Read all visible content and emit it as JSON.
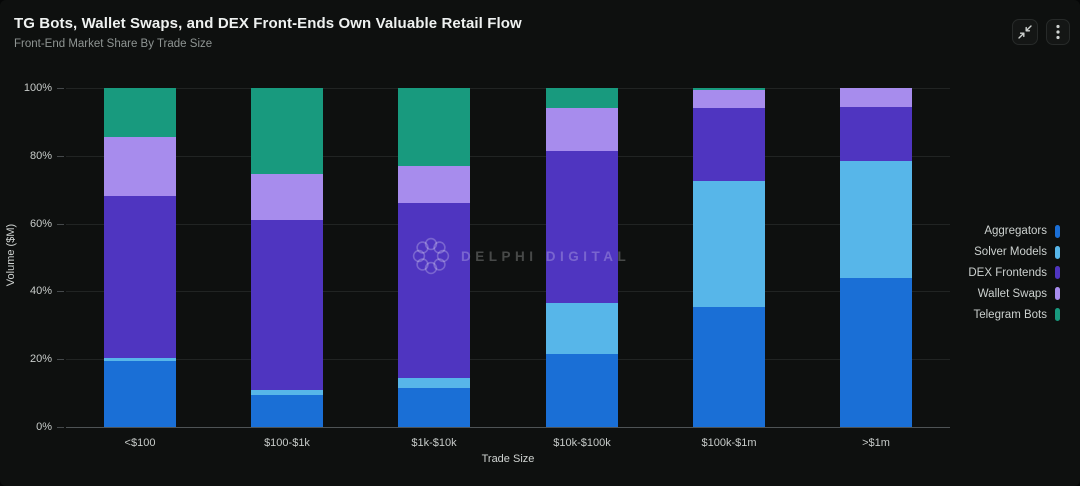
{
  "header": {
    "title": "TG Bots, Wallet Swaps, and DEX Front-Ends Own Valuable Retail Flow",
    "subtitle": "Front-End Market Share By Trade Size"
  },
  "toolbar": {
    "collapse_icon": "collapse-arrows",
    "menu_icon": "vertical-ellipsis"
  },
  "watermark": {
    "text": "DELPHI DIGITAL"
  },
  "colors": {
    "background": "#0e100f",
    "grid": "#212423",
    "axis_line": "#4e5355",
    "tick_text": "#c7cbc9",
    "title_text": "#eff2f1",
    "subtitle_text": "#8f9593",
    "aggregators": "#1a6fd6",
    "solver_models": "#57b6e9",
    "dex_frontends": "#4f35c0",
    "wallet_swaps": "#a78ced",
    "telegram_bots": "#189a7e"
  },
  "chart_data": {
    "type": "bar",
    "stacked": true,
    "normalized_percent": true,
    "title": "TG Bots, Wallet Swaps, and DEX Front-Ends Own Valuable Retail Flow",
    "subtitle": "Front-End Market Share By Trade Size",
    "xlabel": "Trade Size",
    "ylabel": "Volume ($M)",
    "categories": [
      "<$100",
      "$100-$1k",
      "$1k-$10k",
      "$10k-$100k",
      "$100k-$1m",
      ">$1m"
    ],
    "series": [
      {
        "name": "Aggregators",
        "color": "#1a6fd6",
        "values": [
          19.5,
          9.5,
          11.5,
          21.5,
          35.5,
          44
        ]
      },
      {
        "name": "Solver Models",
        "color": "#57b6e9",
        "values": [
          1,
          1.5,
          3,
          15,
          37,
          34.5
        ]
      },
      {
        "name": "DEX Frontends",
        "color": "#4f35c0",
        "values": [
          47.5,
          50,
          51.5,
          45,
          21.5,
          16
        ]
      },
      {
        "name": "Wallet Swaps",
        "color": "#a78ced",
        "values": [
          17.5,
          13.5,
          11,
          12.5,
          5.5,
          5.5
        ]
      },
      {
        "name": "Telegram Bots",
        "color": "#189a7e",
        "values": [
          14.5,
          25.5,
          23,
          6,
          0.5,
          0
        ]
      }
    ],
    "y_ticks": [
      {
        "value": 0,
        "label": "0%"
      },
      {
        "value": 20,
        "label": "20%"
      },
      {
        "value": 40,
        "label": "40%"
      },
      {
        "value": 60,
        "label": "60%"
      },
      {
        "value": 80,
        "label": "80%"
      },
      {
        "value": 100,
        "label": "100%"
      }
    ],
    "ylim": [
      0,
      100
    ],
    "grid": true,
    "legend_position": "right"
  }
}
